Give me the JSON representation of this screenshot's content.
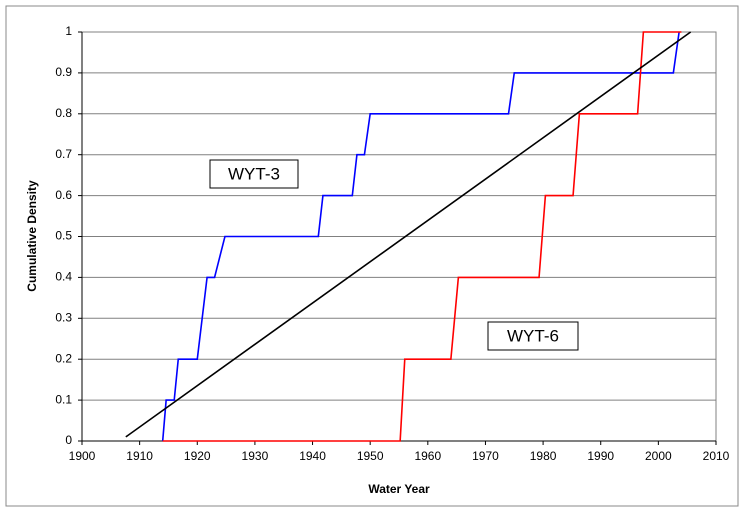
{
  "chart_data": {
    "type": "line",
    "x_label": "Water Year",
    "y_label": "Cumulative Density",
    "xlim": [
      1900,
      2010
    ],
    "xticks": [
      1900,
      1910,
      1920,
      1930,
      1940,
      1950,
      1960,
      1970,
      1980,
      1990,
      2000,
      2010
    ],
    "ylim": [
      0,
      1
    ],
    "yticks": [
      0,
      0.1,
      0.2,
      0.3,
      0.4,
      0.5,
      0.6,
      0.7,
      0.8,
      0.9,
      1
    ],
    "grid": true,
    "series": [
      {
        "color": "#0000ff",
        "x": [
          1914,
          1914.6,
          1916,
          1916.7,
          1920,
          1921.7,
          1923,
          1924.8,
          1941,
          1941.8,
          1946.9,
          1947.7,
          1949,
          1950,
          1974,
          1975,
          2002.6,
          2003.6
        ],
        "y": [
          0,
          0.1,
          0.1,
          0.2,
          0.2,
          0.4,
          0.4,
          0.5,
          0.5,
          0.6,
          0.6,
          0.7,
          0.7,
          0.8,
          0.8,
          0.9,
          0.9,
          1
        ]
      },
      {
        "color": "#ff0000",
        "x": [
          1914,
          1955.2,
          1956,
          1964,
          1965.3,
          1979.3,
          1980.4,
          1985.2,
          1986.3,
          1996.4,
          1997.4,
          2004
        ],
        "y": [
          0,
          0,
          0.2,
          0.2,
          0.4,
          0.4,
          0.6,
          0.6,
          0.8,
          0.8,
          1,
          1
        ]
      },
      {
        "color": "#000000",
        "x": [
          1907.6,
          2005.6
        ],
        "y": [
          0.01,
          1
        ]
      }
    ],
    "annotations": [
      "WYT-3",
      "WYT-6"
    ]
  }
}
